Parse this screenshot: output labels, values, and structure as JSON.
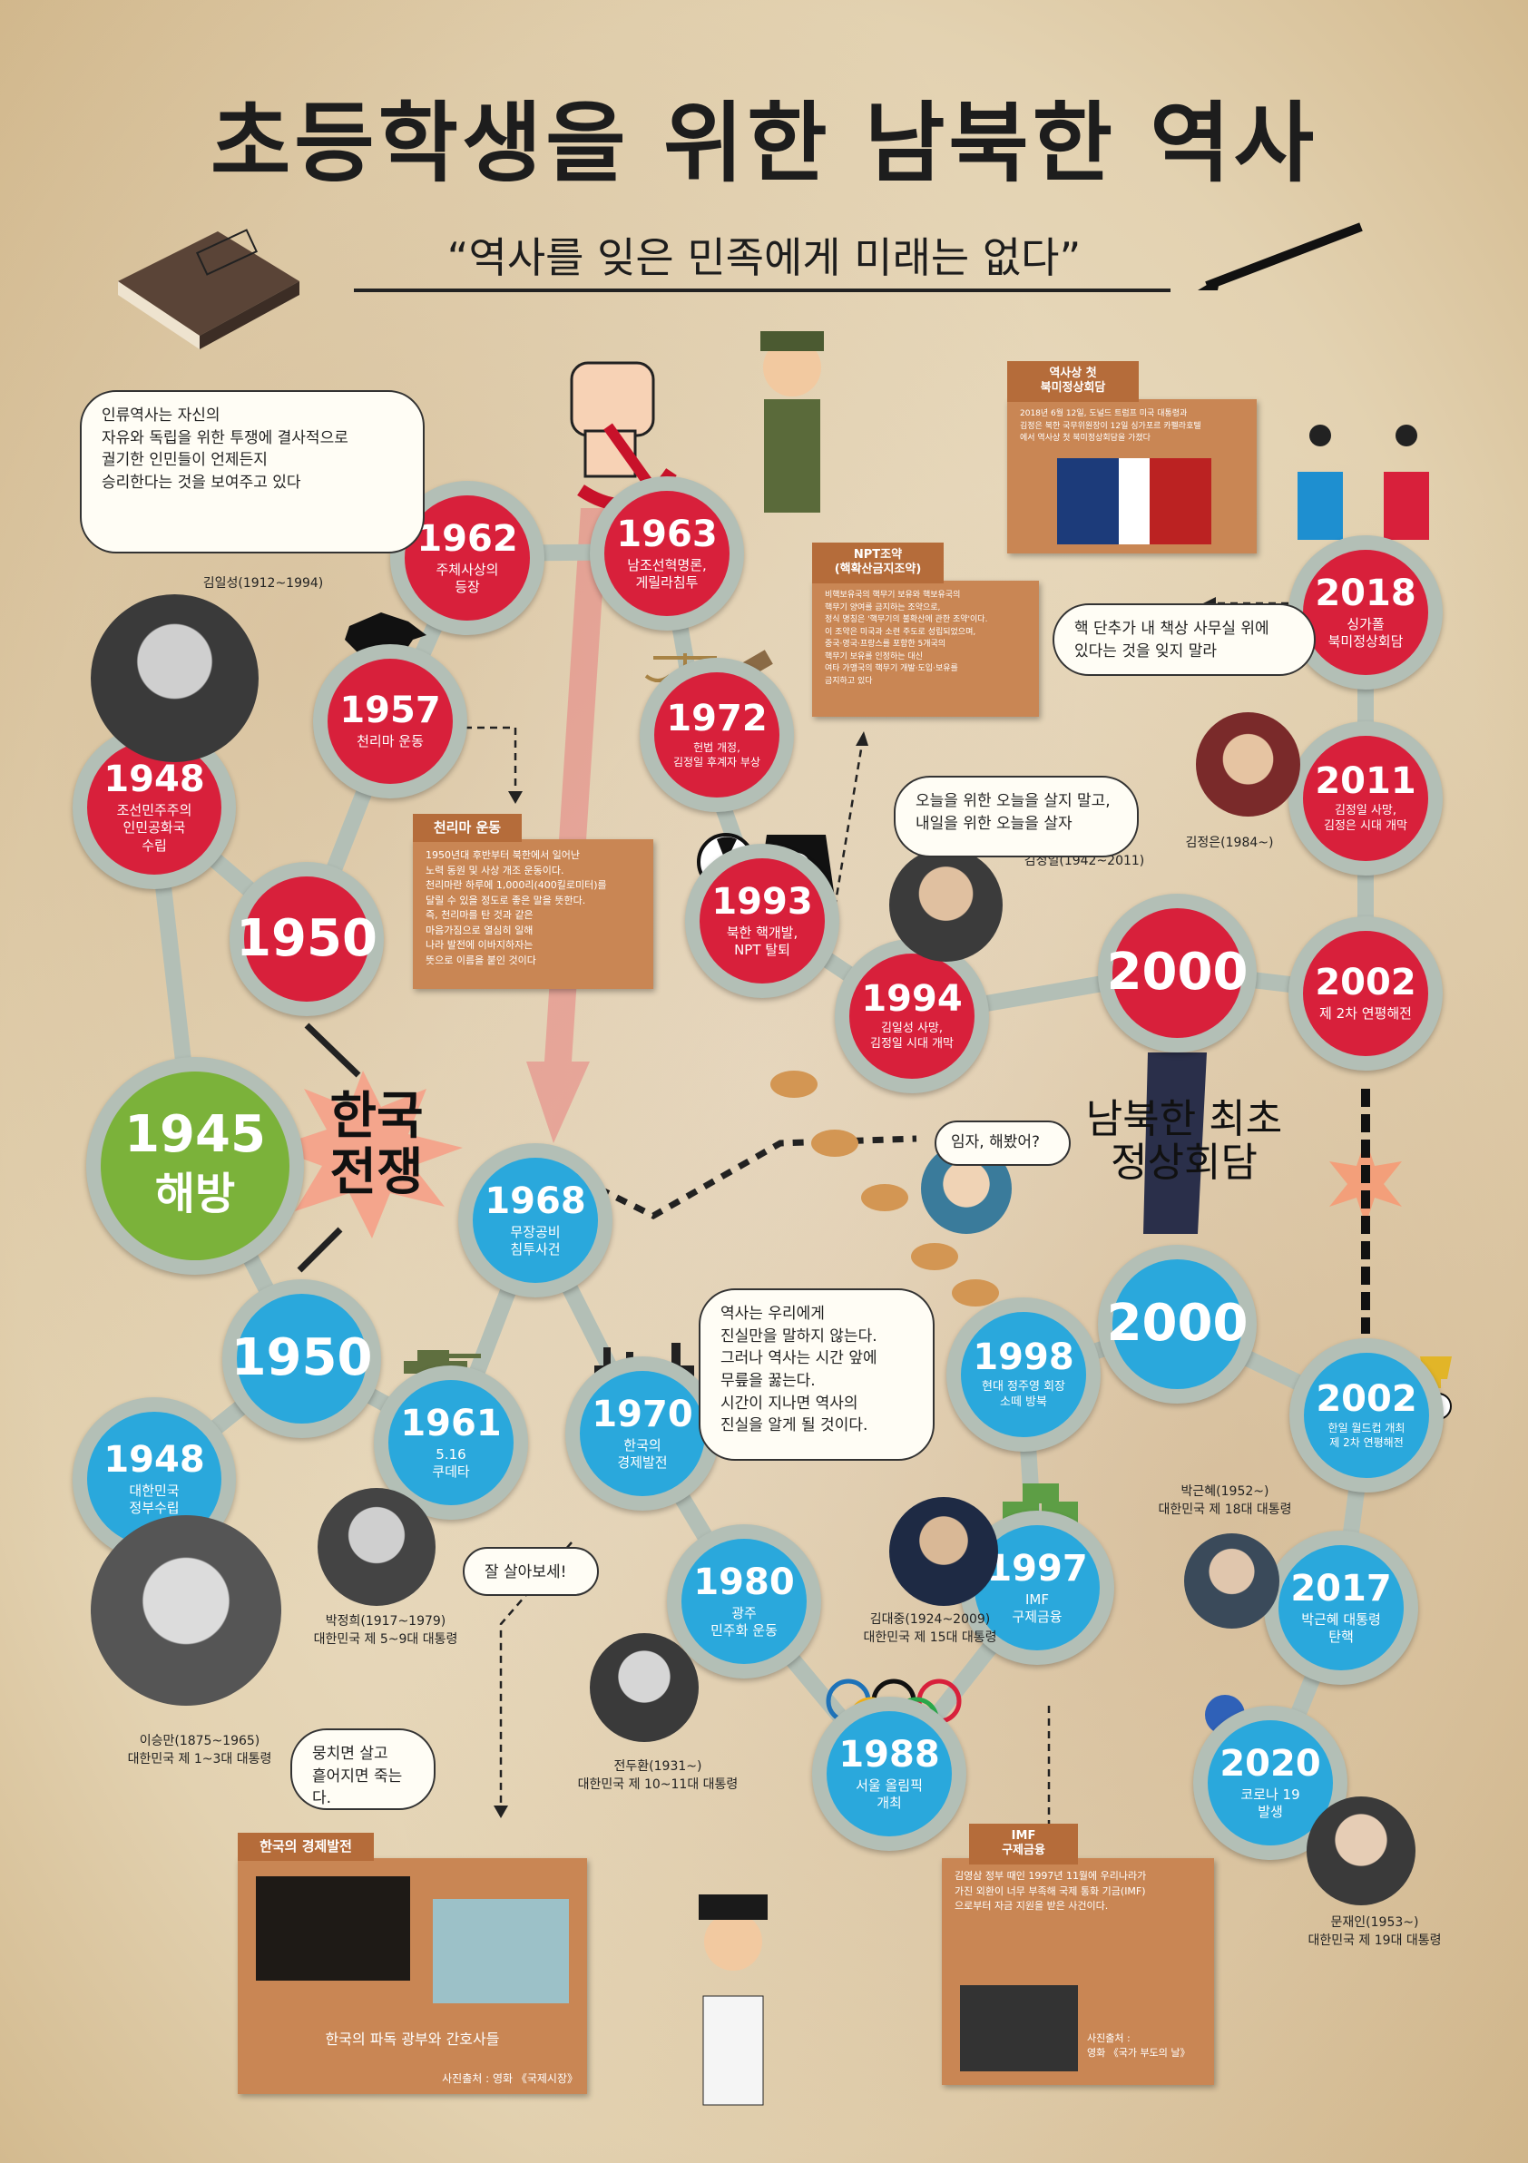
{
  "title": "초등학생을 위한 남북한 역사",
  "subtitle": "“역사를 잊은 민족에게 미래는 없다”",
  "war_label": {
    "line1": "한국",
    "line2": "전쟁"
  },
  "summit_label": {
    "line1": "남북한 최초",
    "line2": "정상회담"
  },
  "north_nodes": [
    {
      "year": "1948",
      "label": "조선민주주의\n인민공화국\n수립"
    },
    {
      "year": "1950",
      "label": ""
    },
    {
      "year": "1957",
      "label": "천리마 운동"
    },
    {
      "year": "1962",
      "label": "주체사상의\n등장"
    },
    {
      "year": "1963",
      "label": "남조선혁명론,\n게릴라침투"
    },
    {
      "year": "1972",
      "label": "헌법 개정,\n김정일 후계자 부상"
    },
    {
      "year": "1993",
      "label": "북한 핵개발,\nNPT 탈퇴"
    },
    {
      "year": "1994",
      "label": "김일성 사망,\n김정일 시대 개막"
    },
    {
      "year": "2000",
      "label": ""
    },
    {
      "year": "2002",
      "label": "제 2차 연평해전"
    },
    {
      "year": "2011",
      "label": "김정일 사망,\n김정은 시대 개막"
    },
    {
      "year": "2018",
      "label": "싱가폴\n북미정상회담"
    }
  ],
  "liberation_node": {
    "year": "1945",
    "label": "해방"
  },
  "south_nodes": [
    {
      "year": "1948",
      "label": "대한민국\n정부수립"
    },
    {
      "year": "1950",
      "label": ""
    },
    {
      "year": "1961",
      "label": "5.16\n쿠데타"
    },
    {
      "year": "1968",
      "label": "무장공비\n침투사건"
    },
    {
      "year": "1970",
      "label": "한국의\n경제발전"
    },
    {
      "year": "1980",
      "label": "광주\n민주화 운동"
    },
    {
      "year": "1988",
      "label": "서울 올림픽\n개최"
    },
    {
      "year": "1997",
      "label": "IMF\n구제금융"
    },
    {
      "year": "1998",
      "label": "현대 정주영 회장\n소떼 방북"
    },
    {
      "year": "2000",
      "label": ""
    },
    {
      "year": "2002",
      "label": "한일 월드컵 개최\n제 2차 연평해전"
    },
    {
      "year": "2017",
      "label": "박근혜 대통령\n탄핵"
    },
    {
      "year": "2020",
      "label": "코로나 19\n발생"
    }
  ],
  "bubbles": {
    "kim_il_sung": "인류역사는 자신의\n자유와 독립을 위한 투쟁에 결사적으로\n궐기한 인민들이 언제든지\n승리한다는 것을 보여주고 있다",
    "kim_jong_il": "오늘을 위한 오늘을 살지 말고,\n내일을 위한 오늘을 살자",
    "kim_jong_un": "핵 단추가 내 책상 사무실 위에\n있다는 것을 잊지 말라",
    "chung_ju_yung": "임자, 해봤어?",
    "kim_dae_jung": "역사는 우리에게\n진실만을 말하지 않는다.\n그러나 역사는 시간 앞에\n무릎을 꿇는다.\n시간이 지나면 역사의\n진실을 알게 될 것이다.",
    "park_chung_hee": "잘 살아보세!",
    "syngman_rhee": "뭉치면 살고\n흩어지면 죽는다."
  },
  "captions": {
    "kim_il_sung": "김일성(1912~1994)",
    "kim_jong_il": "김정일(1942~2011)",
    "kim_jong_un": "김정은(1984~)",
    "park_geun_hye": "박근혜(1952~)\n대한민국 제 18대 대통령",
    "park_chung_hee": "박정희(1917~1979)\n대한민국 제 5~9대 대통령",
    "syngman_rhee": "이승만(1875~1965)\n대한민국 제 1~3대 대통령",
    "chun_doo_hwan": "전두환(1931~)\n대한민국 제 10~11대 대통령",
    "kim_dae_jung": "김대중(1924~2009)\n대한민국 제 15대 대통령",
    "moon_jae_in": "문재인(1953~)\n대한민국 제 19대 대통령"
  },
  "info_boxes": {
    "chollima": {
      "title": "천리마 운동",
      "body": "1950년대 후반부터 북한에서 일어난\n노력 동원 및 사상 개조 운동이다.\n천리마란 하루에 1,000리(400킬로미터)를\n달릴 수 있을 정도로 좋은 말을 뜻한다.\n즉, 천리마를 탄 것과 같은\n마음가짐으로 열심히 일해\n나라 발전에 이바지하자는\n뜻으로 이름을 붙인 것이다"
    },
    "npt": {
      "title": "NPT조약\n(핵확산금지조약)",
      "body": "비핵보유국의 핵무기 보유와 핵보유국의\n핵무기 양여를 금지하는 조약으로,\n정식 명칭은 '핵무기의 불확산에 관한 조약'이다.\n이 조약은 미국과 소련 주도로 성립되었으며,\n중국·영국·프랑스를 포함한 5개국의\n핵무기 보유를 인정하는 대신\n여타 가맹국의 핵무기 개발·도입·보유를\n금지하고 있다"
    },
    "summit": {
      "title": "역사상 첫\n북미정상회담",
      "body": "2018년 6월 12일, 도널드 트럼프 미국 대통령과\n김정은 북한 국무위원장이 12일 싱가포르 카펠라호텔\n에서 역사상 첫 북미정상회담을 가졌다"
    },
    "economy": {
      "title": "한국의 경제발전",
      "caption": "한국의 파독 광부와 간호사들",
      "source": "사진출처 : 영화 《국제시장》"
    },
    "imf": {
      "title": "IMF\n구제금융",
      "body": "김영삼 정부 때인 1997년 11월에 우리나라가\n가진 외환이 너무 부족해 국제 통화 기금(IMF)\n으로부터 자금 지원을 받은 사건이다.",
      "source": "사진출처 :\n영화 《국가 부도의 날》"
    }
  },
  "colors": {
    "north": "#d8203b",
    "south": "#2aa8dc",
    "liberation": "#7bb23a",
    "path": "#b3bfb6",
    "info": "#c98654"
  }
}
